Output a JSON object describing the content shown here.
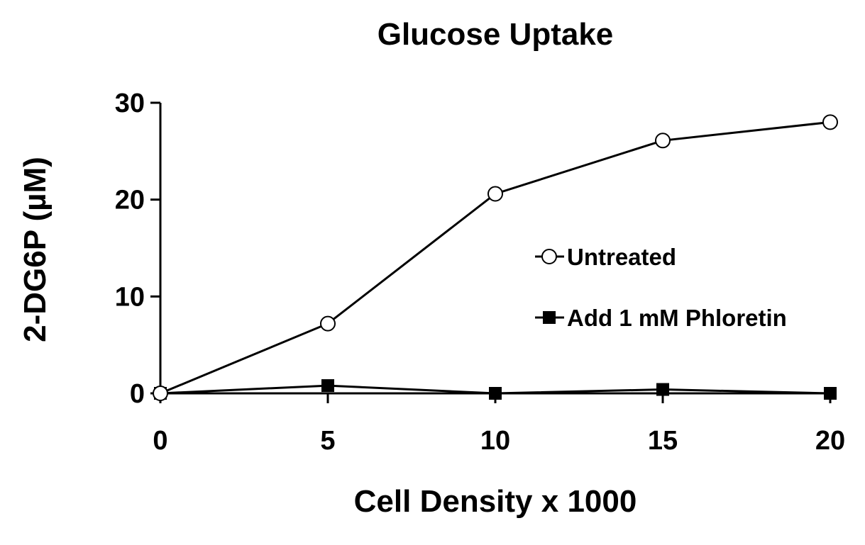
{
  "chart_data": {
    "type": "line",
    "title": "Glucose Uptake",
    "xlabel": "Cell Density x 1000",
    "ylabel": "2-DG6P (µM)",
    "x": [
      0,
      5,
      10,
      15,
      20
    ],
    "xlim": [
      0,
      20
    ],
    "ylim": [
      0,
      30
    ],
    "xticks": [
      "0",
      "5",
      "10",
      "15",
      "20"
    ],
    "yticks": [
      "0",
      "10",
      "20",
      "30"
    ],
    "grid": false,
    "legend_position": "right",
    "series": [
      {
        "name": "Untreated",
        "marker": "open-circle",
        "color": "#000000",
        "values": [
          0,
          7.2,
          20.6,
          26.1,
          28.0
        ]
      },
      {
        "name": "Add 1 mM Phloretin",
        "marker": "filled-square",
        "color": "#000000",
        "values": [
          0,
          0.8,
          0,
          0.4,
          0
        ]
      }
    ]
  }
}
